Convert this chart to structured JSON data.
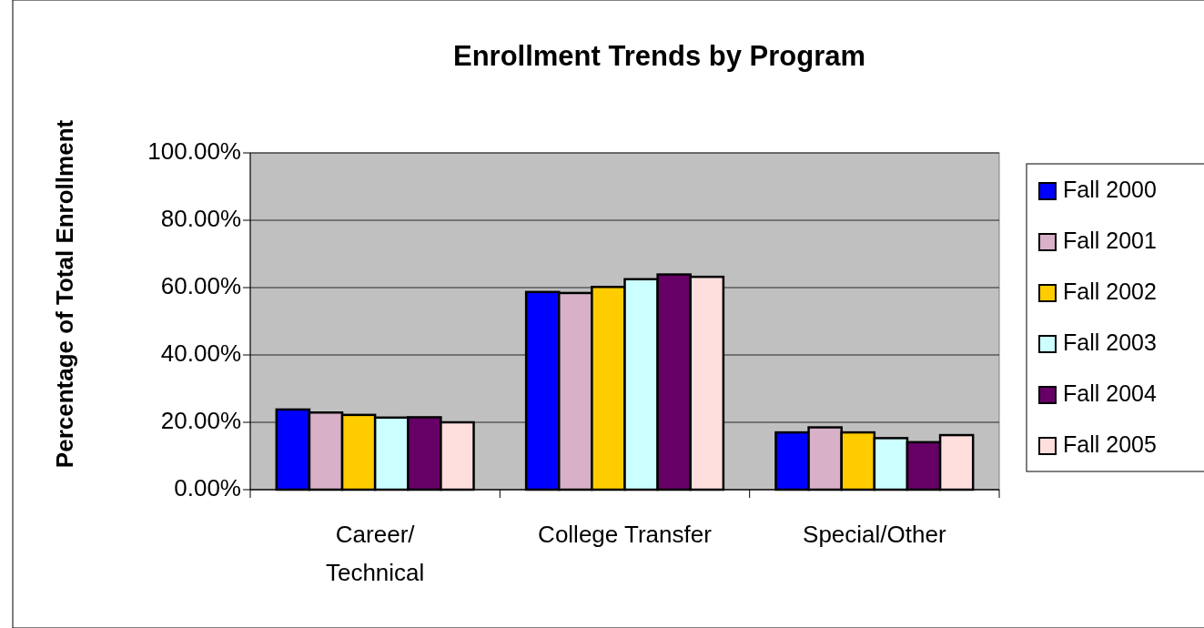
{
  "chart_data": {
    "type": "bar",
    "title": "Enrollment Trends by Program",
    "ylabel": "Percentage of Total Enrollment",
    "categories": [
      "Career/ Technical",
      "College Transfer",
      "Special/Other"
    ],
    "series": [
      {
        "name": "Fall 2000",
        "color": "#0000ff",
        "values": [
          23.8,
          58.7,
          17.0
        ]
      },
      {
        "name": "Fall 2001",
        "color": "#d8b0c8",
        "values": [
          22.9,
          58.4,
          18.5
        ]
      },
      {
        "name": "Fall 2002",
        "color": "#ffcc00",
        "values": [
          22.2,
          60.2,
          17.0
        ]
      },
      {
        "name": "Fall 2003",
        "color": "#ccffff",
        "values": [
          21.4,
          62.5,
          15.3
        ]
      },
      {
        "name": "Fall 2004",
        "color": "#660066",
        "values": [
          21.5,
          63.9,
          14.1
        ]
      },
      {
        "name": "Fall 2005",
        "color": "#ffdede",
        "values": [
          20.0,
          63.2,
          16.2
        ]
      }
    ],
    "ylim": [
      0,
      100
    ],
    "yticks": [
      {
        "value": 0,
        "label": "0.00%"
      },
      {
        "value": 20,
        "label": "20.00%"
      },
      {
        "value": 40,
        "label": "40.00%"
      },
      {
        "value": 60,
        "label": "60.00%"
      },
      {
        "value": 80,
        "label": "80.00%"
      },
      {
        "value": 100,
        "label": "100.00%"
      }
    ],
    "grid": "y",
    "legend": "right"
  }
}
